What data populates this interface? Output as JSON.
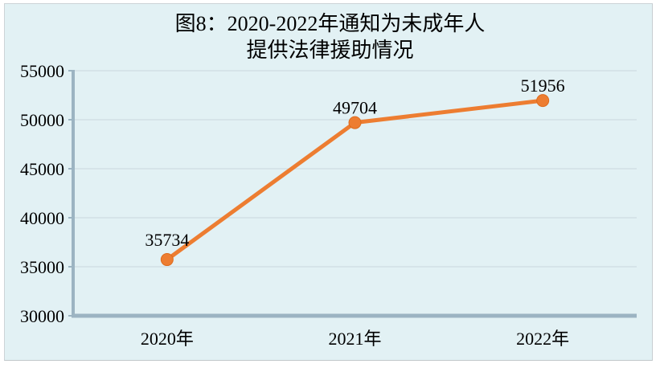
{
  "title": {
    "line1": "图8：2020-2022年通知为未成年人",
    "line2": "提供法律援助情况"
  },
  "chart_data": {
    "type": "line",
    "title": "图8：2020-2022年通知为未成年人提供法律援助情况",
    "categories": [
      "2020年",
      "2021年",
      "2022年"
    ],
    "series": [
      {
        "name": "通知为未成年人提供法律援助",
        "values": [
          35734,
          49704,
          51956
        ]
      }
    ],
    "data_labels": [
      "35734",
      "49704",
      "51956"
    ],
    "xlabel": "",
    "ylabel": "",
    "ylim": [
      30000,
      55000
    ],
    "ytick_interval": 5000,
    "yticks": [
      30000,
      35000,
      40000,
      45000,
      50000,
      55000
    ],
    "ytick_labels": [
      "30000",
      "35000",
      "40000",
      "45000",
      "50000",
      "55000"
    ],
    "grid": true,
    "legend_position": "none",
    "colors": {
      "line": "#ED7D31",
      "marker": "#ED7D31",
      "marker_edge": "#DD6B1D",
      "axis": "#9cb4c2",
      "gridline": "#d2e0e5",
      "plot_background": "#e2f1f4",
      "text": "#000000"
    }
  }
}
